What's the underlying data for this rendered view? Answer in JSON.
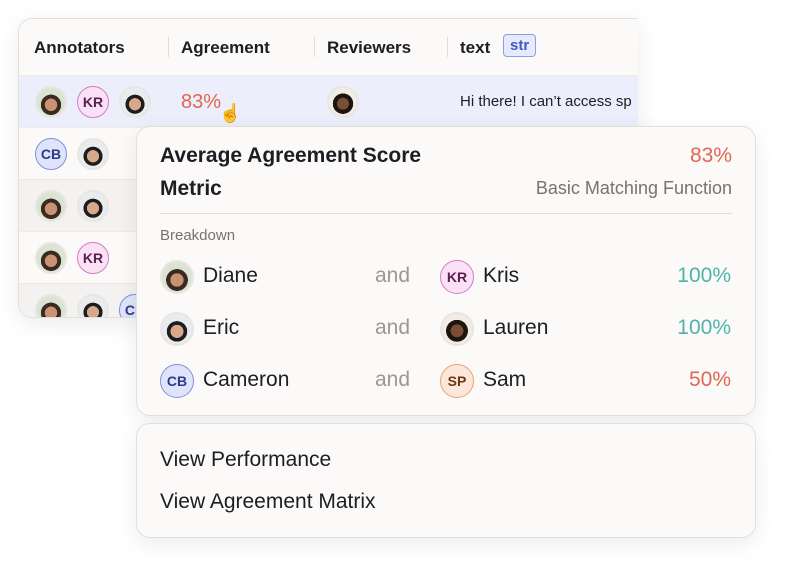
{
  "table": {
    "headers": [
      "Annotators",
      "Agreement",
      "Reviewers",
      "text"
    ],
    "type_badge": "str",
    "rows": [
      {
        "annotators": [
          "KR"
        ],
        "agreement": "83%",
        "text": "Hi there! I can’t access sp"
      },
      {
        "annotators": [
          "CB"
        ]
      },
      {
        "annotators": []
      },
      {
        "annotators": [
          "KR"
        ]
      },
      {
        "annotators": [
          "CB"
        ]
      }
    ]
  },
  "popup": {
    "title": "Average Agreement Score",
    "score": "83%",
    "metric_label": "Metric",
    "metric": "Basic Matching Function",
    "breakdown_label": "Breakdown",
    "pairs": [
      {
        "a": "Diane",
        "joiner": "and",
        "b": "Kris",
        "b_initials": "KR",
        "score": "100%"
      },
      {
        "a": "Eric",
        "joiner": "and",
        "b": "Lauren",
        "score": "100%"
      },
      {
        "a": "Cameron",
        "a_initials": "CB",
        "joiner": "and",
        "b": "Sam",
        "b_initials": "SP",
        "score": "50%"
      }
    ]
  },
  "menu": {
    "items": [
      "View Performance",
      "View Agreement Matrix"
    ]
  }
}
